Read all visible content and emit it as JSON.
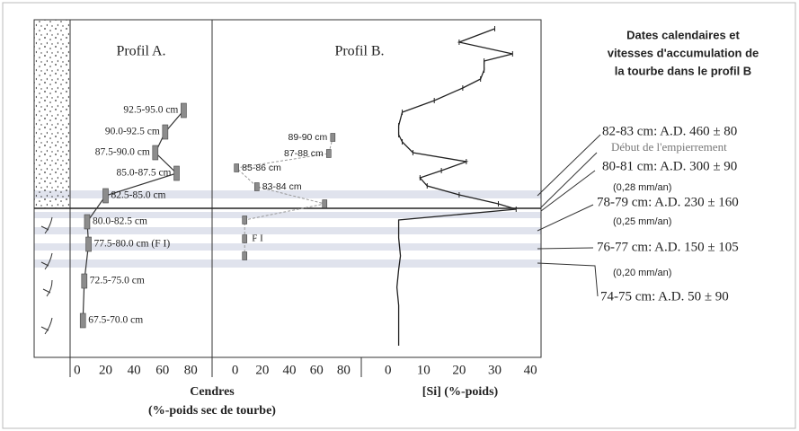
{
  "chart_data": [
    {
      "type": "step",
      "title": "Profil A.",
      "categories": [
        "92.5-95.0 cm",
        "90.0-92.5 cm",
        "87.5-90.0 cm",
        "85.0-87.5 cm",
        "82.5-85.0 cm",
        "80.0-82.5 cm",
        "77.5-80.0 cm (F I)",
        "72.5-75.0 cm",
        "67.5-70.0 cm"
      ],
      "values": [
        75,
        62,
        55,
        70,
        20,
        7,
        8,
        5,
        4
      ],
      "color": "#8c8c8c",
      "xlim": [
        -5,
        95
      ],
      "xticks": [
        0,
        20,
        40,
        60,
        80
      ],
      "xlabel": [
        "Cendres",
        "(%-poids sec de tourbe)"
      ]
    },
    {
      "type": "scatter",
      "title": "Profil B.",
      "categories": [
        "89-90 cm",
        "87-88 cm",
        "85-86 cm",
        "83-84 cm",
        null,
        null,
        null,
        null
      ],
      "values": [
        72,
        69,
        1,
        16,
        66,
        7,
        7,
        7
      ],
      "color": "#8c8c8c",
      "annotation": "F I",
      "xlim": [
        -17,
        93
      ],
      "xticks": [
        0,
        20,
        40,
        60,
        80
      ]
    },
    {
      "type": "line",
      "xlabel": "[Si] (%-poids)",
      "values": [
        30,
        20,
        35,
        27,
        27,
        26,
        21,
        13,
        4,
        3,
        3,
        4,
        7,
        22,
        15,
        9,
        11,
        20,
        31,
        36,
        3,
        3,
        3.5,
        3,
        2.5,
        3,
        3,
        3
      ],
      "color": "#222222",
      "xlim": [
        -7.5,
        43
      ],
      "xticks": [
        0,
        10,
        20,
        30,
        40
      ]
    }
  ],
  "dates": {
    "title": [
      "Dates calendaires et",
      "vitesses d'accumulation de",
      "la tourbe dans le profil B"
    ],
    "entries": [
      "82-83 cm: A.D. 460 ± 80",
      "80-81 cm: A.D. 300 ± 90",
      "78-79 cm: A.D. 230 ± 160",
      "76-77 cm: A.D. 150 ± 105",
      "74-75 cm: A.D. 50 ± 90"
    ],
    "note": "Début de l'empierrement",
    "rates": [
      "(0,28 mm/an)",
      "(0,25 mm/an)",
      "(0,20 mm/an)"
    ]
  }
}
